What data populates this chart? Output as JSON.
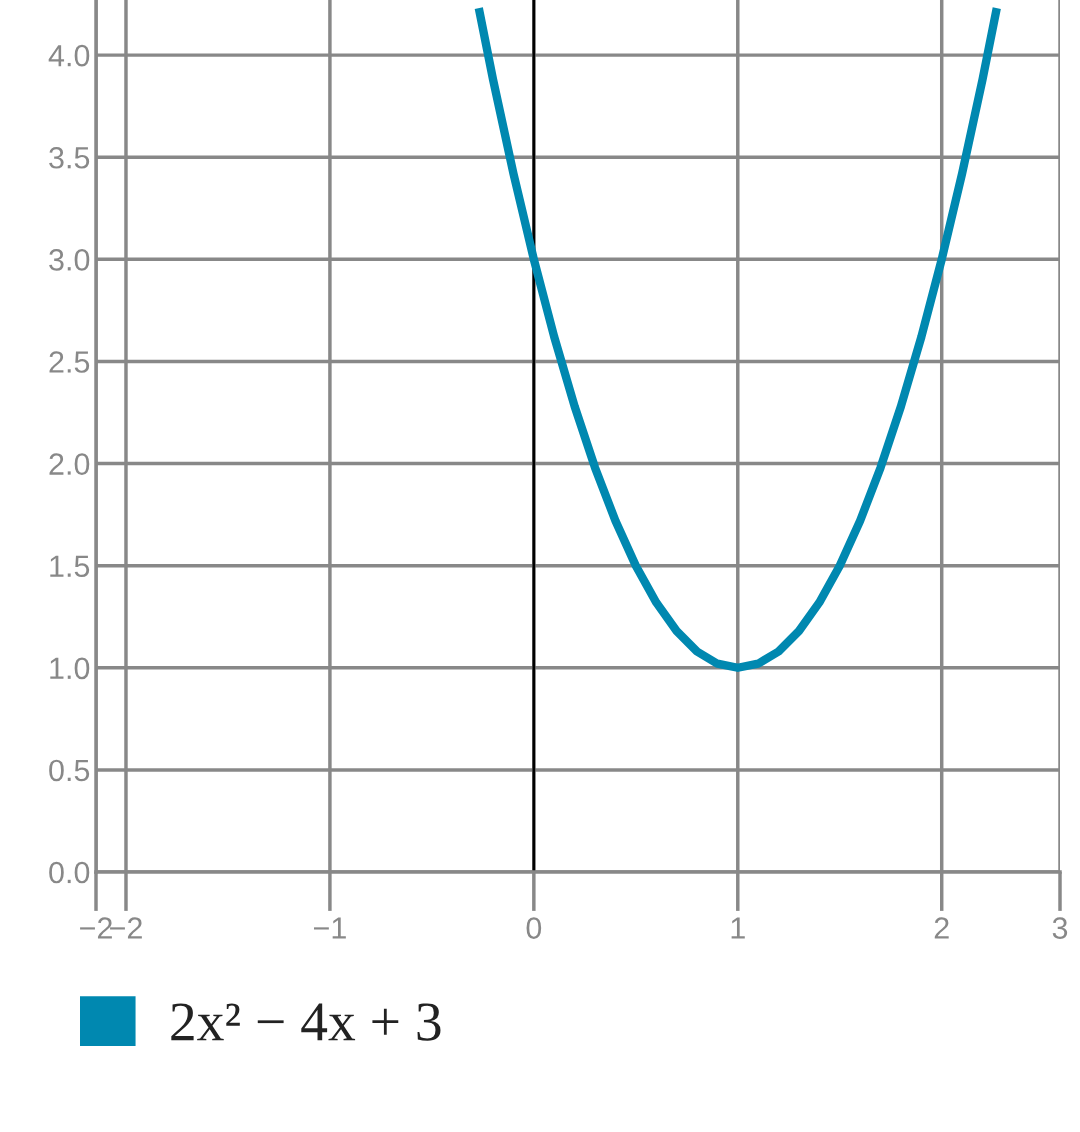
{
  "chart_data": {
    "type": "line",
    "x": [
      -0.27,
      -0.2,
      -0.1,
      0,
      0.1,
      0.2,
      0.3,
      0.4,
      0.5,
      0.6,
      0.7,
      0.8,
      0.9,
      1,
      1.1,
      1.2,
      1.3,
      1.4,
      1.5,
      1.6,
      1.7,
      1.8,
      1.9,
      2,
      2.1,
      2.2,
      2.27
    ],
    "series": [
      {
        "name": "2x² − 4x + 3",
        "color": "#0088b0",
        "values": [
          4.23,
          3.88,
          3.42,
          3,
          2.62,
          2.28,
          1.98,
          1.72,
          1.5,
          1.32,
          1.18,
          1.08,
          1.02,
          1,
          1.02,
          1.08,
          1.18,
          1.32,
          1.5,
          1.72,
          1.98,
          2.28,
          2.62,
          3,
          3.42,
          3.88,
          4.23
        ]
      }
    ],
    "xlim": [
      -2.147,
      2.58
    ],
    "xticks": [
      {
        "value": -2.147,
        "label": "−2"
      },
      {
        "value": -2,
        "label": "−2"
      },
      {
        "value": -1,
        "label": "−1"
      },
      0,
      1,
      2,
      {
        "value": 2.58,
        "label": "3"
      }
    ],
    "ylim": [
      0,
      4.27
    ],
    "yticks": [
      {
        "value": 0,
        "label": "0.0"
      },
      {
        "value": 0.5,
        "label": "0.5"
      },
      {
        "value": 1,
        "label": "1.0"
      },
      {
        "value": 1.5,
        "label": "1.5"
      },
      {
        "value": 2,
        "label": "2.0"
      },
      {
        "value": 2.5,
        "label": "2.5"
      },
      {
        "value": 3,
        "label": "3.0"
      },
      {
        "value": 3.5,
        "label": "3.5"
      },
      {
        "value": 4,
        "label": "4.0"
      }
    ],
    "ref_lines": [
      {
        "axis": "x",
        "value": 0,
        "color": "#000000"
      }
    ],
    "grid": true,
    "legend": "bottom",
    "marker": "none",
    "line_style": "solid"
  }
}
